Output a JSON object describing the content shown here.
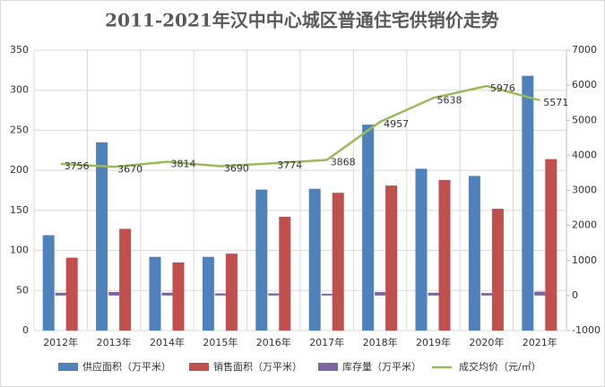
{
  "chart_data": {
    "type": "bar-line",
    "title": "2011-2021年汉中中心城区普通住宅供销价走势",
    "categories": [
      "2012年",
      "2013年",
      "2014年",
      "2015年",
      "2016年",
      "2017年",
      "2018年",
      "2019年",
      "2020年",
      "2021年"
    ],
    "series": [
      {
        "name": "供应面积（万平米）",
        "type": "bar",
        "color": "#4f81bd",
        "values": [
          119,
          235,
          92,
          92,
          176,
          177,
          257,
          202,
          193,
          318
        ]
      },
      {
        "name": "销售面积（万平米）",
        "type": "bar",
        "color": "#c0504d",
        "values": [
          91,
          127,
          85,
          96,
          142,
          172,
          181,
          188,
          152,
          214
        ]
      },
      {
        "name": "库存量（万平米）",
        "type": "bar",
        "axis": "y2",
        "color": "#8064a2",
        "values": [
          80,
          100,
          80,
          60,
          60,
          50,
          100,
          80,
          70,
          110
        ]
      },
      {
        "name": "成交均价（元/㎡）",
        "type": "line",
        "axis": "y2",
        "color": "#9bbb59",
        "values": [
          3756,
          3670,
          3814,
          3690,
          3774,
          3868,
          4957,
          5638,
          5976,
          5571
        ]
      }
    ],
    "ylim": [
      0,
      350
    ],
    "yticks": [
      0,
      50,
      100,
      150,
      200,
      250,
      300,
      350
    ],
    "y2lim": [
      -1000,
      7000
    ],
    "y2ticks": [
      -1000,
      0,
      1000,
      2000,
      3000,
      4000,
      5000,
      6000,
      7000
    ],
    "grid": true
  }
}
